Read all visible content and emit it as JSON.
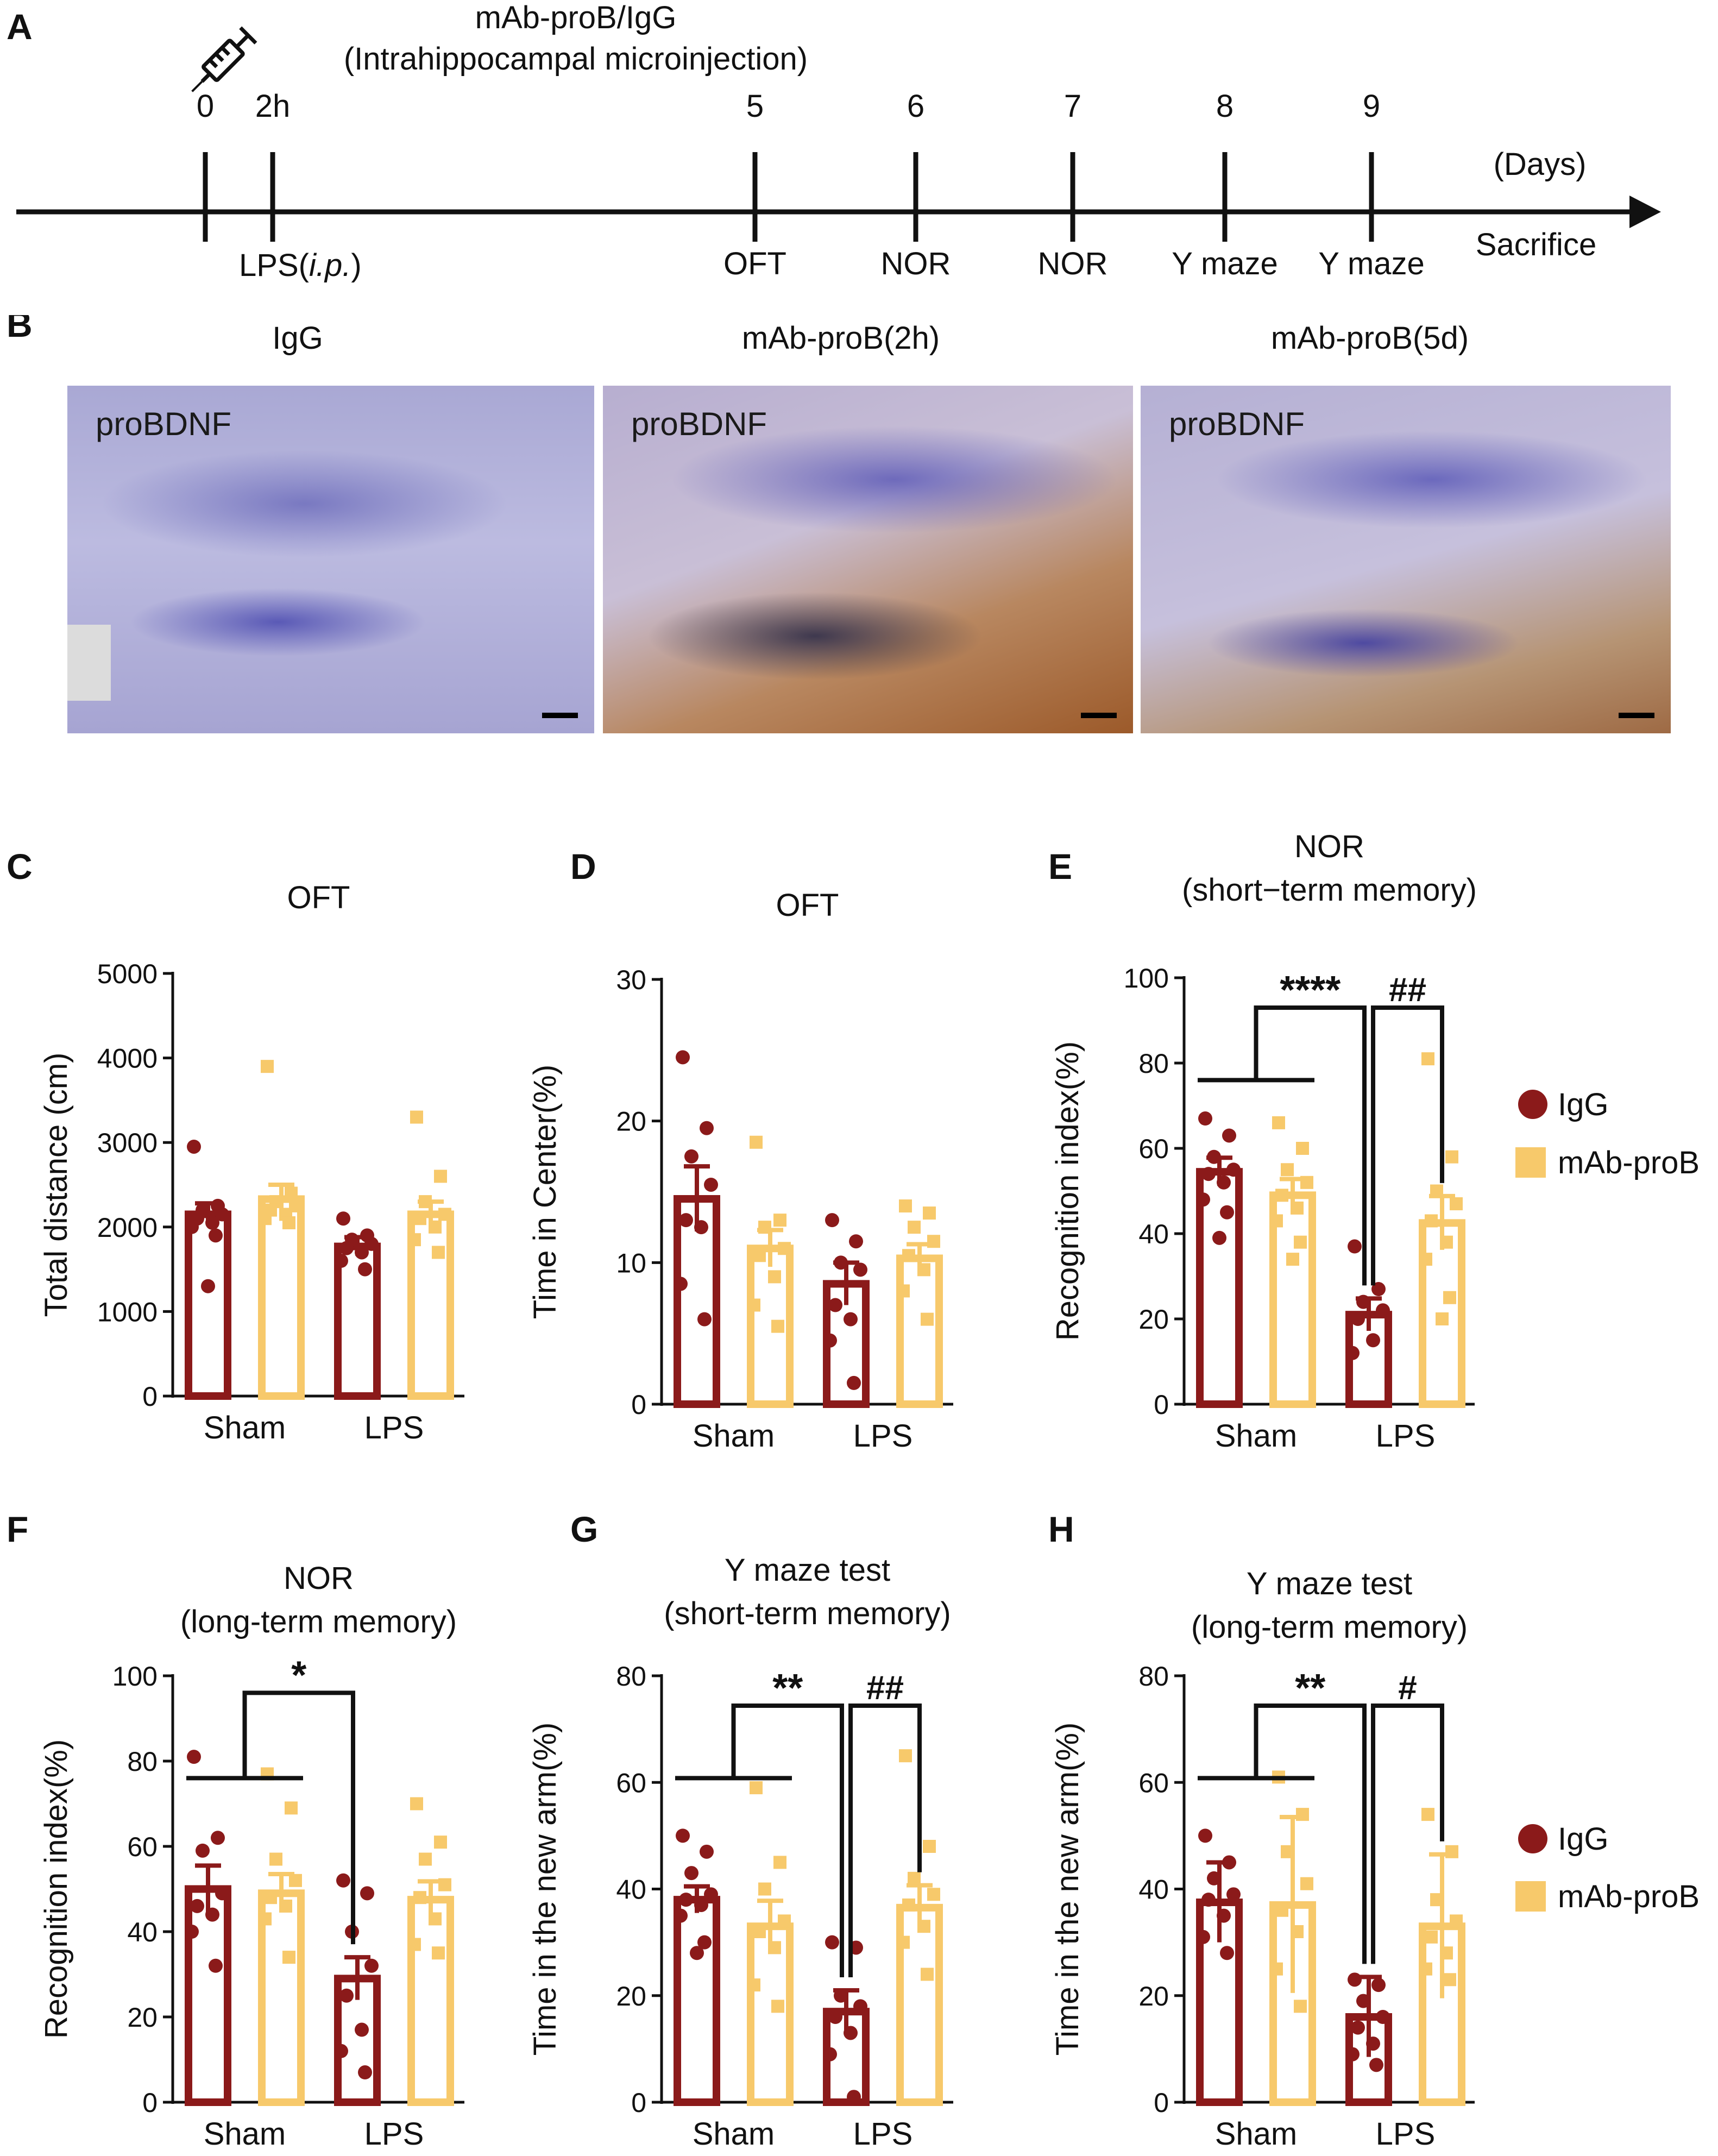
{
  "colors": {
    "igg": "#8b1a1a",
    "mab": "#f7c96b",
    "axis": "#111111"
  },
  "panel_labels": {
    "A": "A",
    "B": "B",
    "C": "C",
    "D": "D",
    "E": "E",
    "F": "F",
    "G": "G",
    "H": "H"
  },
  "timeline": {
    "treatment_title": "mAb-proB/IgG",
    "treatment_subtitle": "(Intrahippocampal microinjection)",
    "unit": "(Days)",
    "end_label": "Sacrifice",
    "lps_text": "LPS(",
    "lps_italic": "i.p.",
    "lps_close": ")",
    "icon": "syringe-icon",
    "ticks": [
      {
        "label": "0",
        "event": ""
      },
      {
        "label": "2h",
        "event": ""
      },
      {
        "label": "5",
        "event": "OFT"
      },
      {
        "label": "6",
        "event": "NOR"
      },
      {
        "label": "7",
        "event": "NOR"
      },
      {
        "label": "8",
        "event": "Y maze"
      },
      {
        "label": "9",
        "event": "Y maze"
      }
    ]
  },
  "histology": [
    {
      "title": "IgG",
      "stain": "proBDNF"
    },
    {
      "title": "mAb-proB(2h)",
      "stain": "proBDNF"
    },
    {
      "title": "mAb-proB(5d)",
      "stain": "proBDNF"
    }
  ],
  "legend": {
    "igg": "IgG",
    "mab": "mAb-proB"
  },
  "chart_data": [
    {
      "panel": "C",
      "type": "bar",
      "title": "OFT",
      "subtitle": "",
      "ylabel": "Total distance (cm)",
      "ylim": [
        0,
        5000
      ],
      "yticks": [
        "0",
        "1000",
        "2000",
        "3000",
        "4000",
        "5000"
      ],
      "categories": [
        "Sham",
        "LPS"
      ],
      "series": [
        {
          "name": "IgG",
          "values": [
            2150,
            1770
          ],
          "sem": [
            130,
            110
          ],
          "points": [
            [
              2950,
              2250,
              2200,
              2150,
              2100,
              2050,
              2000,
              1900,
              1300
            ],
            [
              2100,
              1900,
              1850,
              1800,
              1750,
              1700,
              1600,
              1500
            ]
          ]
        },
        {
          "name": "mAb-proB",
          "values": [
            2330,
            2150
          ],
          "sem": [
            170,
            150
          ],
          "points": [
            [
              3900,
              2400,
              2300,
              2250,
              2200,
              2150,
              2100,
              2050
            ],
            [
              3300,
              2600,
              2300,
              2150,
              2100,
              2000,
              1850,
              1700
            ]
          ]
        }
      ],
      "significance": []
    },
    {
      "panel": "D",
      "type": "bar",
      "title": "OFT",
      "subtitle": "",
      "ylabel": "Time in Center(%)",
      "ylim": [
        0,
        30
      ],
      "yticks": [
        "0",
        "10",
        "20",
        "30"
      ],
      "categories": [
        "Sham",
        "LPS"
      ],
      "series": [
        {
          "name": "IgG",
          "values": [
            14.5,
            8.5
          ],
          "sem": [
            2.3,
            1.5
          ],
          "points": [
            [
              24.5,
              19.5,
              17.5,
              15.5,
              13.0,
              12.5,
              8.5,
              6.0
            ],
            [
              13.0,
              11.5,
              10.0,
              9.5,
              7.0,
              6.0,
              4.5,
              1.5
            ]
          ]
        },
        {
          "name": "mAb-proB",
          "values": [
            11.0,
            10.3
          ],
          "sem": [
            1.3,
            1.0
          ],
          "points": [
            [
              18.5,
              13.0,
              12.5,
              11.0,
              10.5,
              9.0,
              7.0,
              5.5
            ],
            [
              14.0,
              13.5,
              12.5,
              11.5,
              10.5,
              9.5,
              8.0,
              6.0
            ]
          ]
        }
      ],
      "significance": []
    },
    {
      "panel": "E",
      "type": "bar",
      "title": "NOR",
      "subtitle": "(short−term memory)",
      "ylabel": "Recognition index(%)",
      "ylim": [
        0,
        100
      ],
      "yticks": [
        "0",
        "20",
        "40",
        "60",
        "80",
        "100"
      ],
      "categories": [
        "Sham",
        "LPS"
      ],
      "series": [
        {
          "name": "IgG",
          "values": [
            54.5,
            21.0
          ],
          "sem": [
            3.3,
            3.8
          ],
          "points": [
            [
              67,
              63,
              58,
              55,
              54,
              52,
              48,
              45,
              39
            ],
            [
              37,
              27,
              24,
              22,
              20,
              15,
              12
            ]
          ]
        },
        {
          "name": "mAb-proB",
          "values": [
            49.0,
            42.5
          ],
          "sem": [
            3.8,
            6.3
          ],
          "points": [
            [
              66,
              60,
              55,
              52,
              49,
              46,
              43,
              38,
              34
            ],
            [
              81,
              58,
              50,
              47,
              43,
              38,
              34,
              25,
              20
            ]
          ]
        }
      ],
      "significance": [
        {
          "label": "****",
          "from": "sham-both",
          "to": "LPS-IgG"
        },
        {
          "label": "##",
          "from": "LPS-IgG",
          "to": "LPS-mAb"
        }
      ]
    },
    {
      "panel": "F",
      "type": "bar",
      "title": "NOR",
      "subtitle": "(long-term memory)",
      "ylabel": "Recognition index(%)",
      "ylim": [
        0,
        100
      ],
      "yticks": [
        "0",
        "20",
        "40",
        "60",
        "80",
        "100"
      ],
      "categories": [
        "Sham",
        "LPS"
      ],
      "series": [
        {
          "name": "IgG",
          "values": [
            50.0,
            29.0
          ],
          "sem": [
            5.5,
            5.0
          ],
          "points": [
            [
              81,
              62,
              59,
              49,
              46,
              44,
              40,
              32
            ],
            [
              52,
              49,
              40,
              32,
              25,
              17,
              12,
              7
            ]
          ]
        },
        {
          "name": "mAb-proB",
          "values": [
            49.0,
            47.5
          ],
          "sem": [
            4.5,
            4.3
          ],
          "points": [
            [
              77,
              69,
              57,
              52,
              48,
              46,
              43,
              34
            ],
            [
              70,
              61,
              57,
              51,
              48,
              43,
              37,
              35
            ]
          ]
        }
      ],
      "significance": [
        {
          "label": "*",
          "from": "sham-both",
          "to": "LPS-IgG"
        }
      ]
    },
    {
      "panel": "G",
      "type": "bar",
      "title": "Y maze test",
      "subtitle": "(short-term memory)",
      "ylabel": "Time in the new arm(%)",
      "ylim": [
        0,
        80
      ],
      "yticks": [
        "0",
        "20",
        "40",
        "60",
        "80"
      ],
      "categories": [
        "Sham",
        "LPS"
      ],
      "series": [
        {
          "name": "IgG",
          "values": [
            38.0,
            17.0
          ],
          "sem": [
            2.5,
            4.0
          ],
          "points": [
            [
              50,
              47,
              43,
              39,
              38,
              37,
              35,
              30,
              28
            ],
            [
              30,
              29,
              20,
              18,
              16,
              13,
              9,
              1
            ]
          ]
        },
        {
          "name": "mAb-proB",
          "values": [
            33.0,
            36.5
          ],
          "sem": [
            4.8,
            4.2
          ],
          "points": [
            [
              59,
              45,
              40,
              34,
              32,
              29,
              22,
              18
            ],
            [
              65,
              48,
              42,
              39,
              37,
              33,
              30,
              24
            ]
          ]
        }
      ],
      "significance": [
        {
          "label": "**",
          "from": "sham-both",
          "to": "LPS-IgG"
        },
        {
          "label": "##",
          "from": "LPS-IgG",
          "to": "LPS-mAb"
        }
      ]
    },
    {
      "panel": "H",
      "type": "bar",
      "title": "Y maze test",
      "subtitle": "(long-term memory)",
      "ylabel": "Time in the new arm(%)",
      "ylim": [
        0,
        80
      ],
      "yticks": [
        "0",
        "20",
        "40",
        "60",
        "80"
      ],
      "categories": [
        "Sham",
        "LPS"
      ],
      "series": [
        {
          "name": "IgG",
          "values": [
            37.5,
            16.0
          ],
          "sem": [
            7.5,
            7.5
          ],
          "points": [
            [
              50,
              45,
              42,
              39,
              38,
              35,
              31,
              28
            ],
            [
              23,
              22,
              19,
              16,
              14,
              11,
              9,
              7
            ]
          ]
        },
        {
          "name": "mAb-proB",
          "values": [
            37.0,
            33.0
          ],
          "sem": [
            16.5,
            13.5
          ],
          "points": [
            [
              61,
              54,
              47,
              41,
              36,
              32,
              25,
              18
            ],
            [
              54,
              47,
              38,
              34,
              31,
              28,
              25,
              23
            ]
          ]
        }
      ],
      "significance": [
        {
          "label": "**",
          "from": "sham-both",
          "to": "LPS-IgG"
        },
        {
          "label": "#",
          "from": "LPS-IgG",
          "to": "LPS-mAb"
        }
      ]
    }
  ]
}
